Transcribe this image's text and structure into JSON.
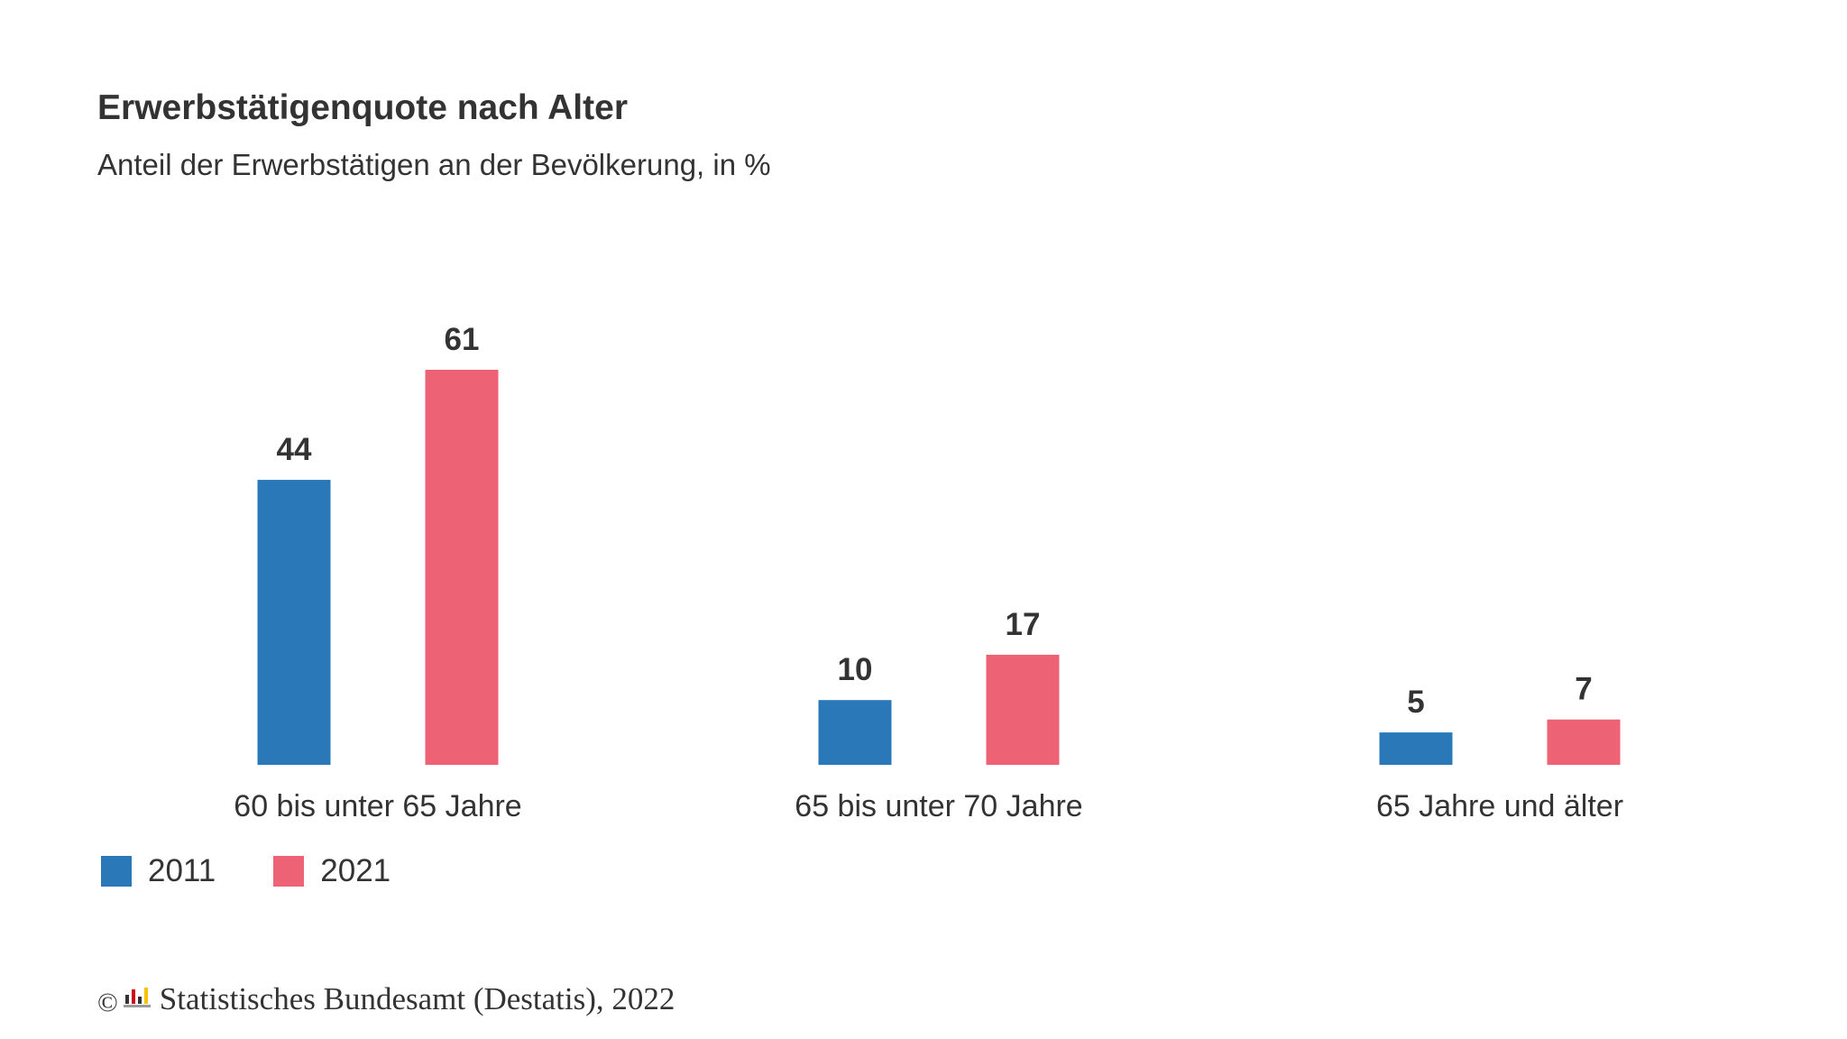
{
  "header": {
    "title": "Erwerbstätigenquote nach Alter",
    "subtitle": "Anteil der Erwerbstätigen an der Bevölkerung, in %"
  },
  "legend": {
    "items": [
      {
        "label": "2011",
        "color": "#2a78b8"
      },
      {
        "label": "2021",
        "color": "#ee6275"
      }
    ]
  },
  "footer": {
    "copyright_symbol": "©",
    "logo_icon": "destatis-logo-icon",
    "source_text": "Statistisches Bundesamt (Destatis), 2022"
  },
  "chart_data": {
    "type": "bar",
    "title": "Erwerbstätigenquote nach Alter",
    "subtitle": "Anteil der Erwerbstätigen an der Bevölkerung, in %",
    "xlabel": "",
    "ylabel": "",
    "ylim": [
      0,
      61
    ],
    "grid": false,
    "legend_position": "bottom-left",
    "categories": [
      "60 bis unter 65 Jahre",
      "65 bis unter 70 Jahre",
      "65 Jahre und älter"
    ],
    "series": [
      {
        "name": "2011",
        "color": "#2a78b8",
        "values": [
          44,
          10,
          5
        ]
      },
      {
        "name": "2021",
        "color": "#ee6275",
        "values": [
          61,
          17,
          7
        ]
      }
    ]
  }
}
